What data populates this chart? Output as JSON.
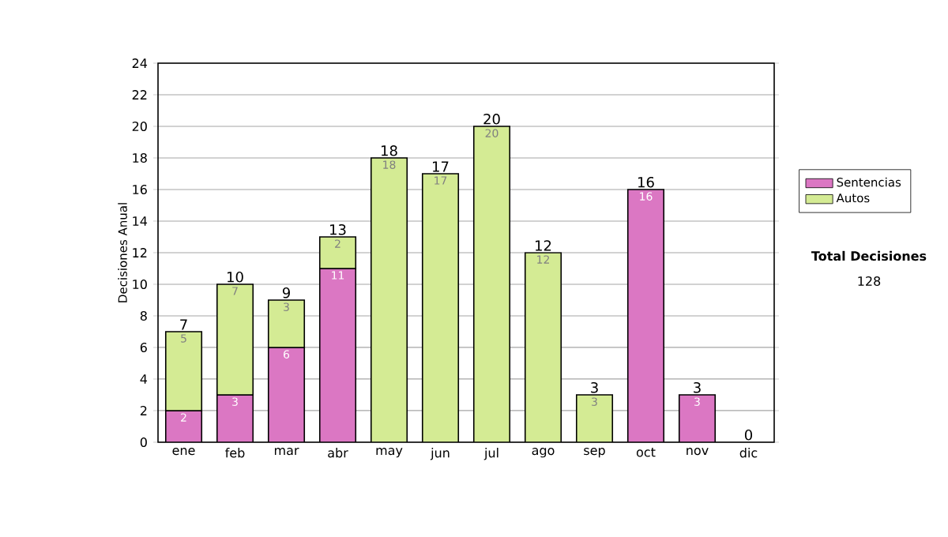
{
  "chart_data": {
    "type": "bar",
    "stacked": true,
    "ylabel": "Decisiones Anual",
    "categories": [
      "ene",
      "feb",
      "mar",
      "abr",
      "may",
      "jun",
      "jul",
      "ago",
      "sep",
      "oct",
      "nov",
      "dic"
    ],
    "series": [
      {
        "name": "Sentencias",
        "color": "#db77c3",
        "values": [
          2,
          3,
          6,
          11,
          0,
          0,
          0,
          0,
          0,
          16,
          3,
          0
        ],
        "value_labels": [
          "2",
          "3",
          "6",
          "11",
          null,
          null,
          null,
          null,
          null,
          "16",
          "3",
          null
        ]
      },
      {
        "name": "Autos",
        "color": "#d4eb94",
        "values": [
          5,
          7,
          3,
          2,
          18,
          17,
          20,
          12,
          3,
          0,
          0,
          0
        ],
        "value_labels": [
          "5",
          "7",
          "3",
          "2",
          "18",
          "17",
          "20",
          "12",
          "3",
          null,
          null,
          null
        ]
      }
    ],
    "totals": [
      "7",
      "10",
      "9",
      "13",
      "18",
      "17",
      "20",
      "12",
      "3",
      "16",
      "3",
      "0"
    ],
    "ylim": [
      0,
      24
    ],
    "yticks": [
      0,
      2,
      4,
      6,
      8,
      10,
      12,
      14,
      16,
      18,
      20,
      22,
      24
    ],
    "grid": "y",
    "legend": "right",
    "annotations": [
      "Total Decisiones",
      "128"
    ]
  }
}
